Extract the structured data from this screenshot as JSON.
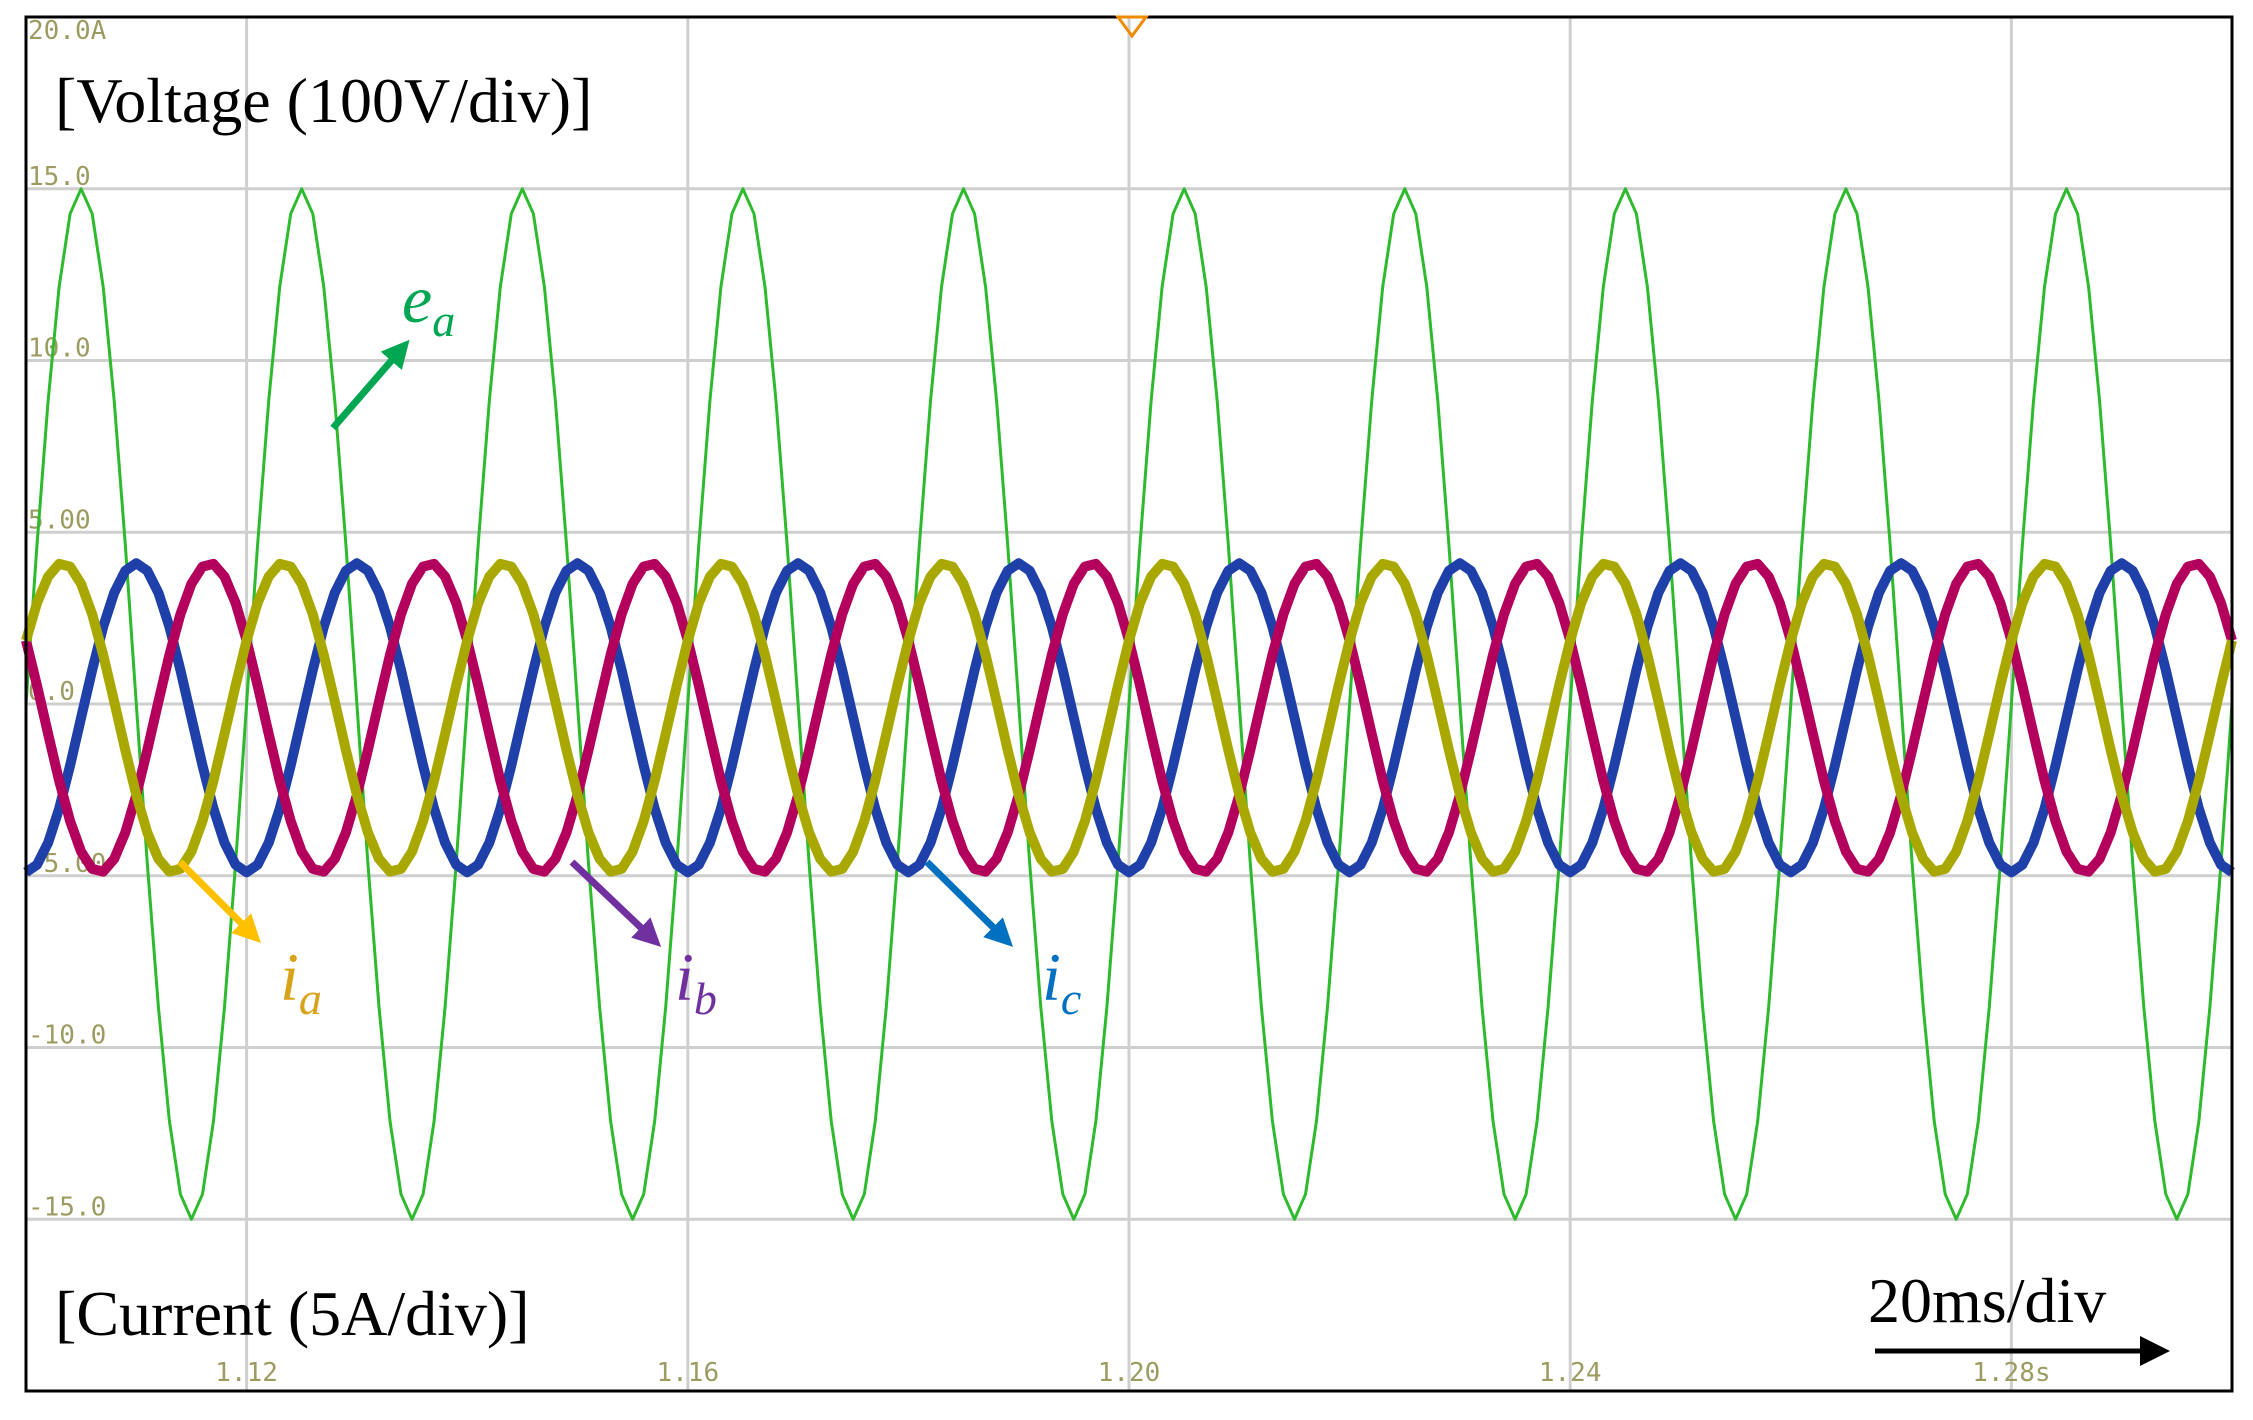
{
  "chart_data": {
    "type": "line",
    "voltage_label": "[Voltage (100V/div)]",
    "current_label": "[Current (5A/div)]",
    "time_scale": "20ms/div",
    "xlim": [
      1.1,
      1.3
    ],
    "ylim": [
      -20,
      20
    ],
    "xticks": [
      1.12,
      1.16,
      {
        "value": 1.2,
        "label": "1.20"
      },
      1.24,
      {
        "value": 1.28,
        "label": "1.28s"
      }
    ],
    "yticks": [
      {
        "value": 20,
        "label": "20.0A"
      },
      {
        "value": 15,
        "label": "15.0"
      },
      {
        "value": 10,
        "label": "10.0"
      },
      {
        "value": 5,
        "label": "5.00"
      },
      {
        "value": 0,
        "label": "0.0"
      },
      {
        "value": -5,
        "label": "-5.00"
      },
      {
        "value": -10,
        "label": "-10.0"
      },
      {
        "value": -15,
        "label": "-15.0"
      }
    ],
    "grid": true,
    "x": [
      1.1,
      1.101,
      1.102,
      1.103,
      1.104,
      1.105,
      1.106,
      1.107,
      1.108,
      1.109,
      1.11,
      1.111,
      1.112,
      1.113,
      1.114,
      1.115,
      1.116,
      1.117,
      1.118,
      1.119,
      1.12,
      1.121,
      1.122,
      1.123,
      1.124,
      1.125,
      1.126,
      1.127,
      1.128,
      1.129,
      1.13,
      1.131,
      1.132,
      1.133,
      1.134,
      1.135,
      1.136,
      1.137,
      1.138,
      1.139,
      1.14,
      1.141,
      1.142,
      1.143,
      1.144,
      1.145,
      1.146,
      1.147,
      1.148,
      1.149,
      1.15,
      1.151,
      1.152,
      1.153,
      1.154,
      1.155,
      1.156,
      1.157,
      1.158,
      1.159,
      1.16,
      1.161,
      1.162,
      1.163,
      1.164,
      1.165,
      1.166,
      1.167,
      1.168,
      1.169,
      1.17,
      1.171,
      1.172,
      1.173,
      1.174,
      1.175,
      1.176,
      1.177,
      1.178,
      1.179,
      1.18,
      1.181,
      1.182,
      1.183,
      1.184,
      1.185,
      1.186,
      1.187,
      1.188,
      1.189,
      1.19,
      1.191,
      1.192,
      1.193,
      1.194,
      1.195,
      1.196,
      1.197,
      1.198,
      1.199,
      1.2,
      1.201,
      1.202,
      1.203,
      1.204,
      1.205,
      1.206,
      1.207,
      1.208,
      1.209,
      1.21,
      1.211,
      1.212,
      1.213,
      1.214,
      1.215,
      1.216,
      1.217,
      1.218,
      1.219,
      1.22,
      1.221,
      1.222,
      1.223,
      1.224,
      1.225,
      1.226,
      1.227,
      1.228,
      1.229,
      1.23,
      1.231,
      1.232,
      1.233,
      1.234,
      1.235,
      1.236,
      1.237,
      1.238,
      1.239,
      1.24,
      1.241,
      1.242,
      1.243,
      1.244,
      1.245,
      1.246,
      1.247,
      1.248,
      1.249,
      1.25,
      1.251,
      1.252,
      1.253,
      1.254,
      1.255,
      1.256,
      1.257,
      1.258,
      1.259,
      1.26,
      1.261,
      1.262,
      1.263,
      1.264,
      1.265,
      1.266,
      1.267,
      1.268,
      1.269,
      1.27,
      1.271,
      1.272,
      1.273,
      1.274,
      1.275,
      1.276,
      1.277,
      1.278,
      1.279,
      1.28,
      1.281,
      1.282,
      1.283,
      1.284,
      1.285,
      1.286,
      1.287,
      1.288,
      1.289,
      1.29,
      1.291,
      1.292,
      1.293,
      1.294,
      1.295,
      1.296,
      1.297,
      1.298,
      1.299,
      1.3
    ],
    "series": [
      {
        "name": "e",
        "sub": "a",
        "color": "#2dbb2d",
        "label_color": "#00a651",
        "width": 3,
        "values": [
          0,
          4.64,
          8.82,
          12.14,
          14.27,
          15,
          14.27,
          12.14,
          8.82,
          4.64,
          0,
          -4.64,
          -8.82,
          -12.14,
          -14.27,
          -15,
          -14.27,
          -12.14,
          -8.82,
          -4.64,
          0,
          4.64,
          8.82,
          12.14,
          14.27,
          15,
          14.27,
          12.14,
          8.82,
          4.64,
          0,
          -4.64,
          -8.82,
          -12.14,
          -14.27,
          -15,
          -14.27,
          -12.14,
          -8.82,
          -4.64,
          0,
          4.64,
          8.82,
          12.14,
          14.27,
          15,
          14.27,
          12.14,
          8.82,
          4.64,
          0,
          -4.64,
          -8.82,
          -12.14,
          -14.27,
          -15,
          -14.27,
          -12.14,
          -8.82,
          -4.64,
          0,
          4.64,
          8.82,
          12.14,
          14.27,
          15,
          14.27,
          12.14,
          8.82,
          4.64,
          0,
          -4.64,
          -8.82,
          -12.14,
          -14.27,
          -15,
          -14.27,
          -12.14,
          -8.82,
          -4.64,
          0,
          4.64,
          8.82,
          12.14,
          14.27,
          15,
          14.27,
          12.14,
          8.82,
          4.64,
          0,
          -4.64,
          -8.82,
          -12.14,
          -14.27,
          -15,
          -14.27,
          -12.14,
          -8.82,
          -4.64,
          0,
          4.64,
          8.82,
          12.14,
          14.27,
          15,
          14.27,
          12.14,
          8.82,
          4.64,
          0,
          -4.64,
          -8.82,
          -12.14,
          -14.27,
          -15,
          -14.27,
          -12.14,
          -8.82,
          -4.64,
          0,
          4.64,
          8.82,
          12.14,
          14.27,
          15,
          14.27,
          12.14,
          8.82,
          4.64,
          0,
          -4.64,
          -8.82,
          -12.14,
          -14.27,
          -15,
          -14.27,
          -12.14,
          -8.82,
          -4.64,
          0,
          4.64,
          8.82,
          12.14,
          14.27,
          15,
          14.27,
          12.14,
          8.82,
          4.64,
          0,
          -4.64,
          -8.82,
          -12.14,
          -14.27,
          -15,
          -14.27,
          -12.14,
          -8.82,
          -4.64,
          0,
          4.64,
          8.82,
          12.14,
          14.27,
          15,
          14.27,
          12.14,
          8.82,
          4.64,
          0,
          -4.64,
          -8.82,
          -12.14,
          -14.27,
          -15,
          -14.27,
          -12.14,
          -8.82,
          -4.64,
          0,
          4.64,
          8.82,
          12.14,
          14.27,
          15,
          14.27,
          12.14,
          8.82,
          4.64,
          0,
          -4.64,
          -8.82,
          -12.14,
          -14.27,
          -15,
          -14.27,
          -12.14,
          -8.82,
          -4.64,
          0
        ]
      },
      {
        "name": "i",
        "sub": "c",
        "color": "#1f40a8",
        "label_color": "#0070c0",
        "width": 10,
        "values": [
          -4.9,
          -4.68,
          -4.04,
          -3.05,
          -1.79,
          -0.4,
          0.99,
          2.25,
          3.24,
          3.88,
          4.1,
          3.88,
          3.24,
          2.25,
          0.99,
          -0.4,
          -1.79,
          -3.05,
          -4.04,
          -4.68,
          -4.9,
          -4.68,
          -4.04,
          -3.05,
          -1.79,
          -0.4,
          0.99,
          2.25,
          3.24,
          3.88,
          4.1,
          3.88,
          3.24,
          2.25,
          0.99,
          -0.4,
          -1.79,
          -3.05,
          -4.04,
          -4.68,
          -4.9,
          -4.68,
          -4.04,
          -3.05,
          -1.79,
          -0.4,
          0.99,
          2.25,
          3.24,
          3.88,
          4.1,
          3.88,
          3.24,
          2.25,
          0.99,
          -0.4,
          -1.79,
          -3.05,
          -4.04,
          -4.68,
          -4.9,
          -4.68,
          -4.04,
          -3.05,
          -1.79,
          -0.4,
          0.99,
          2.25,
          3.24,
          3.88,
          4.1,
          3.88,
          3.24,
          2.25,
          0.99,
          -0.4,
          -1.79,
          -3.05,
          -4.04,
          -4.68,
          -4.9,
          -4.68,
          -4.04,
          -3.05,
          -1.79,
          -0.4,
          0.99,
          2.25,
          3.24,
          3.88,
          4.1,
          3.88,
          3.24,
          2.25,
          0.99,
          -0.4,
          -1.79,
          -3.05,
          -4.04,
          -4.68,
          -4.9,
          -4.68,
          -4.04,
          -3.05,
          -1.79,
          -0.4,
          0.99,
          2.25,
          3.24,
          3.88,
          4.1,
          3.88,
          3.24,
          2.25,
          0.99,
          -0.4,
          -1.79,
          -3.05,
          -4.04,
          -4.68,
          -4.9,
          -4.68,
          -4.04,
          -3.05,
          -1.79,
          -0.4,
          0.99,
          2.25,
          3.24,
          3.88,
          4.1,
          3.88,
          3.24,
          2.25,
          0.99,
          -0.4,
          -1.79,
          -3.05,
          -4.04,
          -4.68,
          -4.9,
          -4.68,
          -4.04,
          -3.05,
          -1.79,
          -0.4,
          0.99,
          2.25,
          3.24,
          3.88,
          4.1,
          3.88,
          3.24,
          2.25,
          0.99,
          -0.4,
          -1.79,
          -3.05,
          -4.04,
          -4.68,
          -4.9,
          -4.68,
          -4.04,
          -3.05,
          -1.79,
          -0.4,
          0.99,
          2.25,
          3.24,
          3.88,
          4.1,
          3.88,
          3.24,
          2.25,
          0.99,
          -0.4,
          -1.79,
          -3.05,
          -4.04,
          -4.68,
          -4.9,
          -4.68,
          -4.04,
          -3.05,
          -1.79,
          -0.4,
          0.99,
          2.25,
          3.24,
          3.88,
          4.1,
          3.88,
          3.24,
          2.25,
          0.99,
          -0.4,
          -1.79,
          -3.05,
          -4.04,
          -4.68,
          -4.9
        ]
      },
      {
        "name": "i",
        "sub": "b",
        "color": "#b3005c",
        "label_color": "#7030a0",
        "width": 10,
        "values": [
          1.85,
          0.54,
          -0.87,
          -2.23,
          -3.41,
          -4.3,
          -4.8,
          -4.88,
          -4.51,
          -3.74,
          -2.65,
          -1.34,
          0.07,
          1.43,
          2.61,
          3.5,
          4,
          4.08,
          3.71,
          2.94,
          1.85,
          0.54,
          -0.87,
          -2.23,
          -3.41,
          -4.3,
          -4.8,
          -4.88,
          -4.51,
          -3.74,
          -2.65,
          -1.34,
          0.07,
          1.43,
          2.61,
          3.5,
          4,
          4.08,
          3.71,
          2.94,
          1.85,
          0.54,
          -0.87,
          -2.23,
          -3.41,
          -4.3,
          -4.8,
          -4.88,
          -4.51,
          -3.74,
          -2.65,
          -1.34,
          0.07,
          1.43,
          2.61,
          3.5,
          4,
          4.08,
          3.71,
          2.94,
          1.85,
          0.54,
          -0.87,
          -2.23,
          -3.41,
          -4.3,
          -4.8,
          -4.88,
          -4.51,
          -3.74,
          -2.65,
          -1.34,
          0.07,
          1.43,
          2.61,
          3.5,
          4,
          4.08,
          3.71,
          2.94,
          1.85,
          0.54,
          -0.87,
          -2.23,
          -3.41,
          -4.3,
          -4.8,
          -4.88,
          -4.51,
          -3.74,
          -2.65,
          -1.34,
          0.07,
          1.43,
          2.61,
          3.5,
          4,
          4.08,
          3.71,
          2.94,
          1.85,
          0.54,
          -0.87,
          -2.23,
          -3.41,
          -4.3,
          -4.8,
          -4.88,
          -4.51,
          -3.74,
          -2.65,
          -1.34,
          0.07,
          1.43,
          2.61,
          3.5,
          4,
          4.08,
          3.71,
          2.94,
          1.85,
          0.54,
          -0.87,
          -2.23,
          -3.41,
          -4.3,
          -4.8,
          -4.88,
          -4.51,
          -3.74,
          -2.65,
          -1.34,
          0.07,
          1.43,
          2.61,
          3.5,
          4,
          4.08,
          3.71,
          2.94,
          1.85,
          0.54,
          -0.87,
          -2.23,
          -3.41,
          -4.3,
          -4.8,
          -4.88,
          -4.51,
          -3.74,
          -2.65,
          -1.34,
          0.07,
          1.43,
          2.61,
          3.5,
          4,
          4.08,
          3.71,
          2.94,
          1.85,
          0.54,
          -0.87,
          -2.23,
          -3.41,
          -4.3,
          -4.8,
          -4.88,
          -4.51,
          -3.74,
          -2.65,
          -1.34,
          0.07,
          1.43,
          2.61,
          3.5,
          4,
          4.08,
          3.71,
          2.94,
          1.85,
          0.54,
          -0.87,
          -2.23,
          -3.41,
          -4.3,
          -4.8,
          -4.88,
          -4.51,
          -3.74,
          -2.65,
          -1.34,
          0.07,
          1.43,
          2.61,
          3.5,
          4,
          4.08,
          3.71,
          2.94,
          1.85
        ]
      },
      {
        "name": "i",
        "sub": "a",
        "color": "#a9a800",
        "label_color": "#d9a21b",
        "width": 10,
        "values": [
          1.85,
          2.94,
          3.71,
          4.08,
          4,
          3.5,
          2.61,
          1.43,
          0.07,
          -1.34,
          -2.65,
          -3.74,
          -4.51,
          -4.88,
          -4.8,
          -4.3,
          -3.41,
          -2.23,
          -0.87,
          0.54,
          1.85,
          2.94,
          3.71,
          4.08,
          4,
          3.5,
          2.61,
          1.43,
          0.07,
          -1.34,
          -2.65,
          -3.74,
          -4.51,
          -4.88,
          -4.8,
          -4.3,
          -3.41,
          -2.23,
          -0.87,
          0.54,
          1.85,
          2.94,
          3.71,
          4.08,
          4,
          3.5,
          2.61,
          1.43,
          0.07,
          -1.34,
          -2.65,
          -3.74,
          -4.51,
          -4.88,
          -4.8,
          -4.3,
          -3.41,
          -2.23,
          -0.87,
          0.54,
          1.85,
          2.94,
          3.71,
          4.08,
          4,
          3.5,
          2.61,
          1.43,
          0.07,
          -1.34,
          -2.65,
          -3.74,
          -4.51,
          -4.88,
          -4.8,
          -4.3,
          -3.41,
          -2.23,
          -0.87,
          0.54,
          1.85,
          2.94,
          3.71,
          4.08,
          4,
          3.5,
          2.61,
          1.43,
          0.07,
          -1.34,
          -2.65,
          -3.74,
          -4.51,
          -4.88,
          -4.8,
          -4.3,
          -3.41,
          -2.23,
          -0.87,
          0.54,
          1.85,
          2.94,
          3.71,
          4.08,
          4,
          3.5,
          2.61,
          1.43,
          0.07,
          -1.34,
          -2.65,
          -3.74,
          -4.51,
          -4.88,
          -4.8,
          -4.3,
          -3.41,
          -2.23,
          -0.87,
          0.54,
          1.85,
          2.94,
          3.71,
          4.08,
          4,
          3.5,
          2.61,
          1.43,
          0.07,
          -1.34,
          -2.65,
          -3.74,
          -4.51,
          -4.88,
          -4.8,
          -4.3,
          -3.41,
          -2.23,
          -0.87,
          0.54,
          1.85,
          2.94,
          3.71,
          4.08,
          4,
          3.5,
          2.61,
          1.43,
          0.07,
          -1.34,
          -2.65,
          -3.74,
          -4.51,
          -4.88,
          -4.8,
          -4.3,
          -3.41,
          -2.23,
          -0.87,
          0.54,
          1.85,
          2.94,
          3.71,
          4.08,
          4,
          3.5,
          2.61,
          1.43,
          0.07,
          -1.34,
          -2.65,
          -3.74,
          -4.51,
          -4.88,
          -4.8,
          -4.3,
          -3.41,
          -2.23,
          -0.87,
          0.54,
          1.85,
          2.94,
          3.71,
          4.08,
          4,
          3.5,
          2.61,
          1.43,
          0.07,
          -1.34,
          -2.65,
          -3.74,
          -4.51,
          -4.88,
          -4.8,
          -4.3,
          -3.41,
          -2.23,
          -0.87,
          0.54,
          1.85
        ]
      }
    ]
  }
}
